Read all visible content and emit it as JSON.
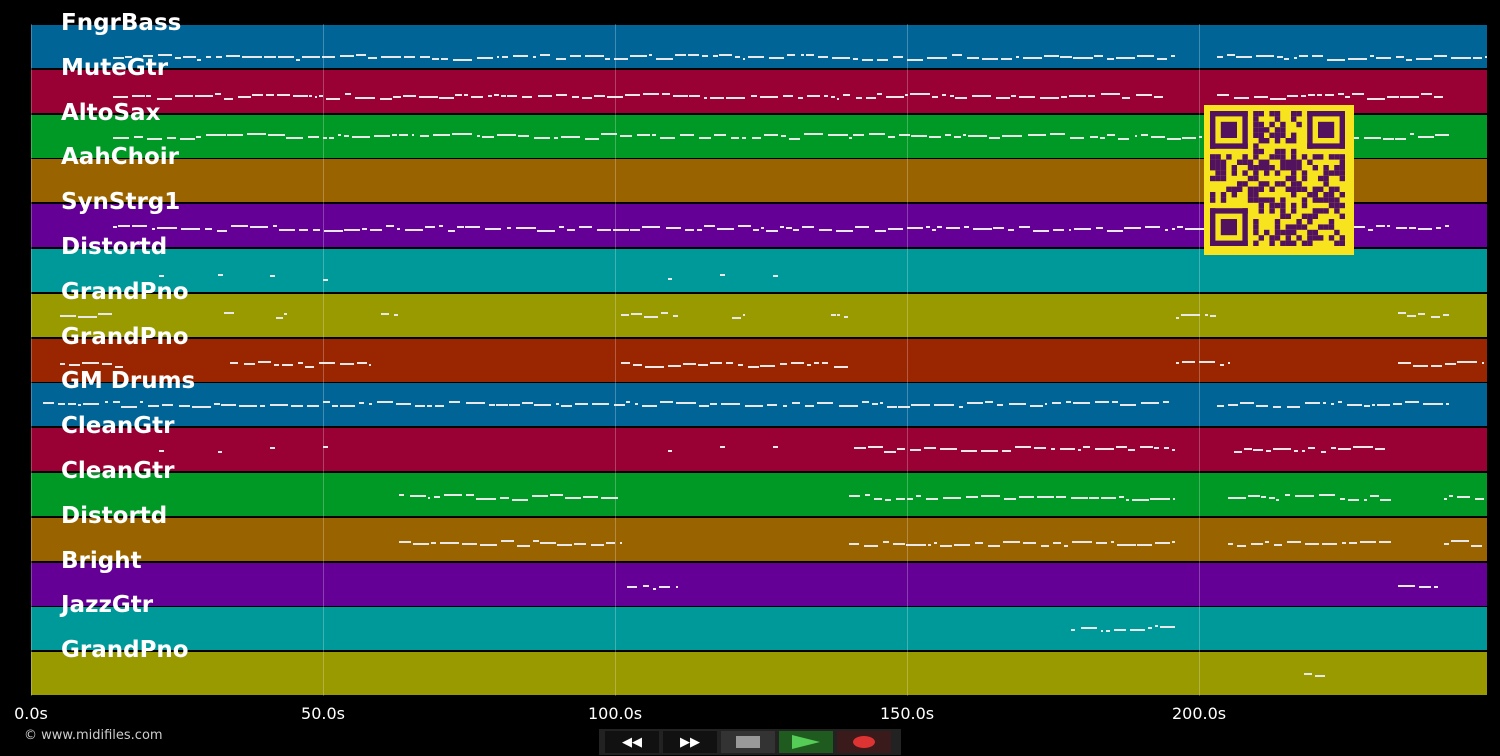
{
  "tracks": [
    {
      "name": "FngrBass",
      "color": "#006496",
      "spans": [
        [
          14,
          196
        ],
        [
          203,
          249
        ]
      ]
    },
    {
      "name": "MuteGtr",
      "color": "#990033",
      "spans": [
        [
          14,
          194
        ],
        [
          203,
          242
        ]
      ]
    },
    {
      "name": "AltoSax",
      "color": "#009926",
      "spans": [
        [
          14,
          243
        ]
      ]
    },
    {
      "name": "AahChoir",
      "color": "#996400",
      "spans": []
    },
    {
      "name": "SynStrg1",
      "color": "#640096",
      "spans": [
        [
          14,
          243
        ]
      ]
    },
    {
      "name": "Distortd",
      "color": "#009999",
      "spans": [
        [
          22,
          23
        ],
        [
          32,
          33
        ],
        [
          41,
          42
        ],
        [
          50,
          51
        ],
        [
          109,
          110
        ],
        [
          118,
          119
        ],
        [
          127,
          128
        ]
      ]
    },
    {
      "name": "GrandPno",
      "color": "#999900",
      "spans": [
        [
          5,
          14
        ],
        [
          33,
          35
        ],
        [
          42,
          44
        ],
        [
          60,
          63
        ],
        [
          101,
          111
        ],
        [
          120,
          122
        ],
        [
          137,
          140
        ],
        [
          196,
          203
        ],
        [
          234,
          243
        ]
      ]
    },
    {
      "name": "GrandPno",
      "color": "#992600",
      "spans": [
        [
          5,
          16
        ],
        [
          34,
          58
        ],
        [
          101,
          140
        ],
        [
          196,
          205
        ],
        [
          234,
          249
        ]
      ]
    },
    {
      "name": "GM Drums",
      "color": "#006496",
      "spans": [
        [
          2,
          195
        ],
        [
          203,
          243
        ]
      ]
    },
    {
      "name": "CleanGtr",
      "color": "#990033",
      "spans": [
        [
          22,
          23
        ],
        [
          32,
          33
        ],
        [
          41,
          42
        ],
        [
          50,
          51
        ],
        [
          109,
          110
        ],
        [
          118,
          119
        ],
        [
          127,
          128
        ],
        [
          141,
          196
        ],
        [
          206,
          232
        ]
      ]
    },
    {
      "name": "CleanGtr",
      "color": "#009926",
      "spans": [
        [
          63,
          101
        ],
        [
          140,
          196
        ],
        [
          205,
          233
        ],
        [
          242,
          249
        ]
      ]
    },
    {
      "name": "Distortd",
      "color": "#996400",
      "spans": [
        [
          63,
          101
        ],
        [
          140,
          196
        ],
        [
          205,
          233
        ],
        [
          242,
          249
        ]
      ]
    },
    {
      "name": "Bright",
      "color": "#640096",
      "spans": [
        [
          102,
          111
        ],
        [
          234,
          241
        ]
      ]
    },
    {
      "name": "JazzGtr",
      "color": "#009999",
      "spans": [
        [
          178,
          196
        ]
      ]
    },
    {
      "name": "GrandPno",
      "color": "#999900",
      "spans": [
        [
          218,
          222
        ]
      ]
    }
  ],
  "axis": {
    "ticks": [
      {
        "value": 0,
        "label": "0.0s"
      },
      {
        "value": 50,
        "label": "50.0s"
      },
      {
        "value": 100,
        "label": "100.0s"
      },
      {
        "value": 150,
        "label": "150.0s"
      },
      {
        "value": 200,
        "label": "200.0s"
      }
    ],
    "max": 249.3
  },
  "copyright": "© www.midifiles.com",
  "controls": {
    "rewind": "rewind-icon",
    "forward": "fast-forward-icon",
    "stop": "stop-icon",
    "play": "play-icon",
    "record": "record-icon"
  }
}
